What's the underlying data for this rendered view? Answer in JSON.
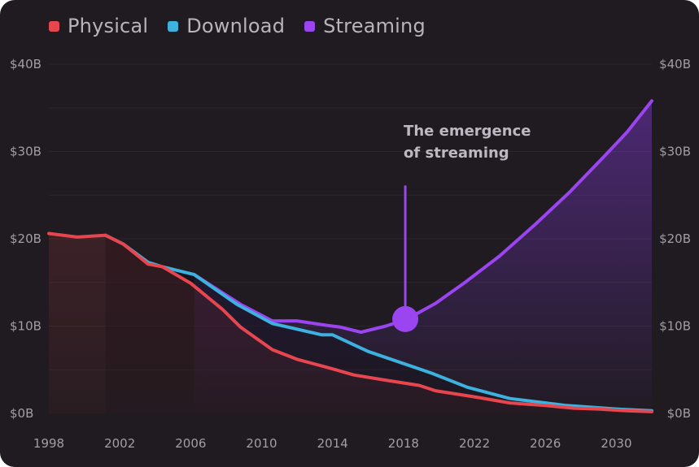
{
  "chart_data": {
    "type": "line",
    "title": "",
    "legend": [
      "Physical",
      "Download",
      "Streaming"
    ],
    "legend_position": "top-left",
    "colors": {
      "Physical": "#e8464f",
      "Download": "#3db2de",
      "Streaming": "#9a45ef",
      "background": "#1f1b20"
    },
    "x_ticks": [
      "1998",
      "2002",
      "2006",
      "2010",
      "2014",
      "2018",
      "2022",
      "2026",
      "2030"
    ],
    "y_ticks": [
      "$0B",
      "$10B",
      "$20B",
      "$30B",
      "$40B"
    ],
    "xlim": [
      1998,
      2032
    ],
    "ylim": [
      0,
      40
    ],
    "series": [
      {
        "name": "Physical",
        "x": [
          1998,
          1999.6,
          2001.2,
          2002.2,
          2003.6,
          2004.4,
          2006,
          2007.8,
          2008.8,
          2010.6,
          2012,
          2014,
          2015.2,
          2017,
          2018.9,
          2019.8,
          2022,
          2024,
          2026,
          2027.6,
          2029,
          2030.6,
          2032
        ],
        "values": [
          20.6,
          20.2,
          20.4,
          19.4,
          17.1,
          16.8,
          14.9,
          11.9,
          9.9,
          7.3,
          6.2,
          5.1,
          4.4,
          3.8,
          3.2,
          2.6,
          1.9,
          1.2,
          0.9,
          0.6,
          0.5,
          0.3,
          0.2
        ]
      },
      {
        "name": "Download",
        "x": [
          2001.2,
          2002.2,
          2003.6,
          2004.4,
          2006.2,
          2008.6,
          2010.6,
          2013.4,
          2014,
          2016,
          2019.6,
          2021.6,
          2024,
          2025.6,
          2027.2,
          2030,
          2032
        ],
        "values": [
          20.4,
          19.4,
          17.3,
          16.8,
          15.9,
          12.5,
          10.3,
          9.0,
          9.0,
          7.1,
          4.6,
          3.0,
          1.7,
          1.3,
          0.9,
          0.5,
          0.3
        ]
      },
      {
        "name": "Streaming",
        "x": [
          2006.2,
          2008.8,
          2010.6,
          2012,
          2013.6,
          2014.4,
          2015.6,
          2017,
          2018.2,
          2019.8,
          2021.4,
          2023.4,
          2025.4,
          2027.4,
          2029.2,
          2030.6,
          2032
        ],
        "values": [
          15.9,
          12.5,
          10.6,
          10.6,
          10.1,
          9.9,
          9.3,
          10.0,
          10.8,
          12.6,
          14.9,
          18.0,
          21.6,
          25.4,
          29.2,
          32.2,
          35.8
        ]
      }
    ],
    "annotation": {
      "lines": [
        "The emergence",
        "of streaming"
      ],
      "x": 2018.1,
      "y": 10.8,
      "stem_top_value": 26.1
    }
  }
}
